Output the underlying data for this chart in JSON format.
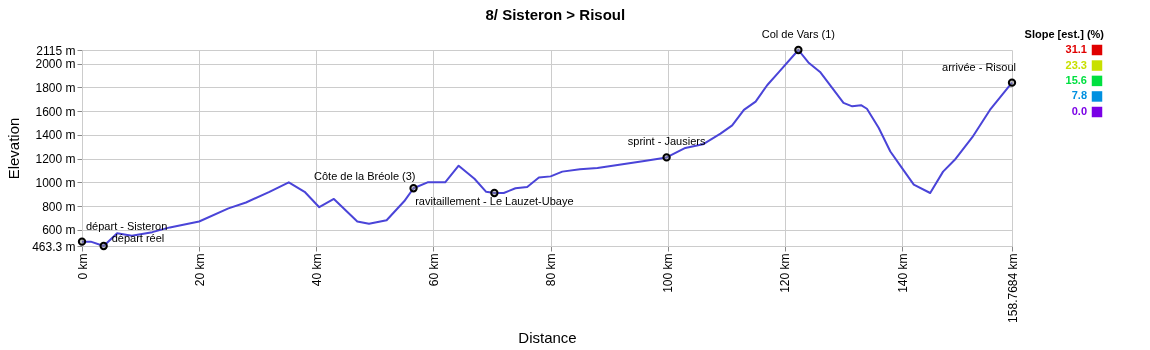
{
  "chart_data": {
    "type": "line",
    "title": "8/ Sisteron > Risoul",
    "xlabel": "Distance",
    "ylabel": "Elevation",
    "xlim": [
      0,
      158.7684
    ],
    "ylim": [
      463.3,
      2115
    ],
    "xticks": [
      {
        "value": 0,
        "label": "0 km"
      },
      {
        "value": 20,
        "label": "20 km"
      },
      {
        "value": 40,
        "label": "40 km"
      },
      {
        "value": 60,
        "label": "60 km"
      },
      {
        "value": 80,
        "label": "80 km"
      },
      {
        "value": 100,
        "label": "100 km"
      },
      {
        "value": 120,
        "label": "120 km"
      },
      {
        "value": 140,
        "label": "140 km"
      },
      {
        "value": 158.7684,
        "label": "158.7684 km"
      }
    ],
    "yticks": [
      {
        "value": 463.3,
        "label": "463.3 m"
      },
      {
        "value": 600,
        "label": "600 m"
      },
      {
        "value": 800,
        "label": "800 m"
      },
      {
        "value": 1000,
        "label": "1000 m"
      },
      {
        "value": 1200,
        "label": "1200 m"
      },
      {
        "value": 1400,
        "label": "1400 m"
      },
      {
        "value": 1600,
        "label": "1600 m"
      },
      {
        "value": 1800,
        "label": "1800 m"
      },
      {
        "value": 2000,
        "label": "2000 m"
      },
      {
        "value": 2115,
        "label": "2115 m"
      }
    ],
    "grid": true,
    "clabel": "Slope [est.] (%)",
    "cticks": [
      31.1,
      23.3,
      15.6,
      7.8,
      {
        "value": 0,
        "label": "0.0"
      }
    ],
    "series": [
      {
        "type": "line",
        "color": "#4a44d8",
        "marker": "none",
        "x": [
          0,
          1.5,
          3.7,
          6,
          8.5,
          12,
          15,
          20,
          25,
          28,
          32,
          35.3,
          38,
          40.5,
          43,
          47,
          49,
          52,
          55,
          56.6,
          59,
          62,
          64.3,
          67,
          69,
          70.4,
          72,
          74,
          76,
          78,
          80,
          82,
          85,
          88,
          92,
          96,
          99.8,
          103,
          106,
          109,
          111,
          113,
          115,
          117,
          119,
          122.3,
          124,
          126,
          128,
          130,
          131.5,
          133,
          134,
          136,
          138,
          140,
          142,
          144.8,
          147,
          149,
          152,
          155,
          158.7684
        ],
        "values": [
          500,
          500,
          463.3,
          570,
          550,
          580,
          620,
          670,
          780,
          830,
          920,
          1000,
          920,
          790,
          860,
          670,
          650,
          680,
          840,
          950,
          1000,
          1000,
          1140,
          1030,
          920,
          910,
          910,
          950,
          960,
          1040,
          1050,
          1090,
          1110,
          1120,
          1150,
          1180,
          1210,
          1290,
          1320,
          1410,
          1480,
          1610,
          1680,
          1820,
          1930,
          2115,
          2010,
          1930,
          1800,
          1670,
          1640,
          1650,
          1620,
          1460,
          1260,
          1120,
          980,
          910,
          1090,
          1190,
          1380,
          1610,
          1840
        ]
      },
      {
        "type": "scatter",
        "color": "#000000",
        "marker": "circle",
        "x": [
          0,
          3.7,
          56.6,
          70.4,
          99.8,
          122.3,
          158.7684
        ],
        "values": [
          500,
          463.3,
          950,
          910,
          1210,
          2115,
          1840
        ]
      }
    ],
    "annotations": [
      {
        "text": "départ - Sisteron",
        "x": 0,
        "y": 500
      },
      {
        "text": "départ réel",
        "x": 3.7,
        "y": 463.3
      },
      {
        "text": "Côte de la Bréole (3)",
        "x": 56.6,
        "y": 950
      },
      {
        "text": "ravitaillement - Le Lauzet-Ubaye",
        "x": 70.4,
        "y": 910
      },
      {
        "text": "sprint - Jausiers",
        "x": 99.8,
        "y": 1210
      },
      {
        "text": "Col de Vars (1)",
        "x": 122.3,
        "y": 2115
      },
      {
        "text": "arrivée - Risoul",
        "x": 158.7684,
        "y": 1840
      }
    ]
  }
}
